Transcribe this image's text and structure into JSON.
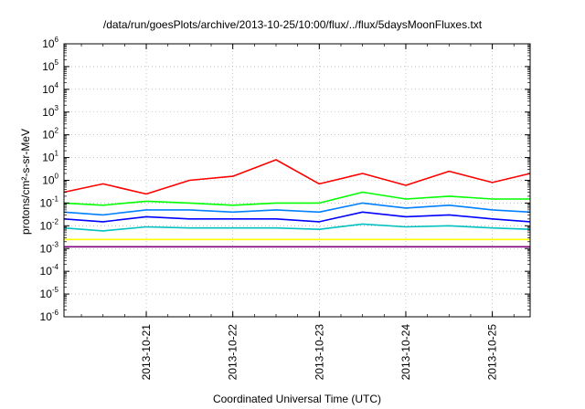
{
  "chart_data": {
    "type": "line",
    "title": "/data/run/goesPlots/archive/2013-10-25/10:00/flux/../flux/5daysMoonFluxes.txt",
    "xlabel": "Coordinated Universal Time (UTC)",
    "ylabel": "protons/cm²-s-sr-MeV",
    "yscale": "log",
    "ylim": [
      1e-06,
      1000000.0
    ],
    "ytick_exponents": [
      -6,
      -5,
      -4,
      -3,
      -2,
      -1,
      0,
      1,
      2,
      3,
      4,
      5,
      6
    ],
    "xlim": [
      "2013-10-20 01:10",
      "2013-10-25 10:30"
    ],
    "xticks": [
      {
        "label": "2013-10-21",
        "date": "2013-10-21 00:00"
      },
      {
        "label": "2013-10-22",
        "date": "2013-10-22 00:00"
      },
      {
        "label": "2013-10-23",
        "date": "2013-10-23 00:00"
      },
      {
        "label": "2013-10-24",
        "date": "2013-10-24 00:00"
      },
      {
        "label": "2013-10-25",
        "date": "2013-10-25 00:00"
      }
    ],
    "grid": true,
    "x": [
      "2013-10-20 01:10",
      "2013-10-20 12:00",
      "2013-10-21 00:00",
      "2013-10-21 12:00",
      "2013-10-22 00:00",
      "2013-10-22 12:00",
      "2013-10-23 00:00",
      "2013-10-23 12:00",
      "2013-10-24 00:00",
      "2013-10-24 12:00",
      "2013-10-25 00:00",
      "2013-10-25 10:30"
    ],
    "series": [
      {
        "color": "#ff0000",
        "values": [
          0.3,
          0.7,
          0.25,
          1.0,
          1.5,
          8.0,
          0.7,
          2.0,
          0.6,
          2.5,
          0.8,
          2.0
        ]
      },
      {
        "color": "#00ff00",
        "values": [
          0.1,
          0.08,
          0.12,
          0.1,
          0.08,
          0.1,
          0.1,
          0.3,
          0.15,
          0.2,
          0.15,
          0.15
        ]
      },
      {
        "color": "#0080ff",
        "values": [
          0.04,
          0.03,
          0.05,
          0.05,
          0.04,
          0.05,
          0.04,
          0.1,
          0.06,
          0.08,
          0.05,
          0.04
        ]
      },
      {
        "color": "#0000ff",
        "values": [
          0.02,
          0.015,
          0.025,
          0.02,
          0.02,
          0.02,
          0.015,
          0.04,
          0.025,
          0.03,
          0.02,
          0.015
        ]
      },
      {
        "color": "#00c0c0",
        "values": [
          0.008,
          0.006,
          0.009,
          0.008,
          0.008,
          0.008,
          0.007,
          0.012,
          0.009,
          0.01,
          0.008,
          0.007
        ]
      },
      {
        "color": "#ffff00",
        "values": [
          0.0025,
          0.0025,
          0.0025,
          0.0025,
          0.0025,
          0.0025,
          0.0025,
          0.0025,
          0.0025,
          0.0025,
          0.0025,
          0.0025
        ]
      },
      {
        "color": "#800080",
        "values": [
          0.0012,
          0.0012,
          0.0012,
          0.0012,
          0.0012,
          0.0012,
          0.0012,
          0.0012,
          0.0012,
          0.0012,
          0.0012,
          0.0012
        ]
      }
    ]
  }
}
